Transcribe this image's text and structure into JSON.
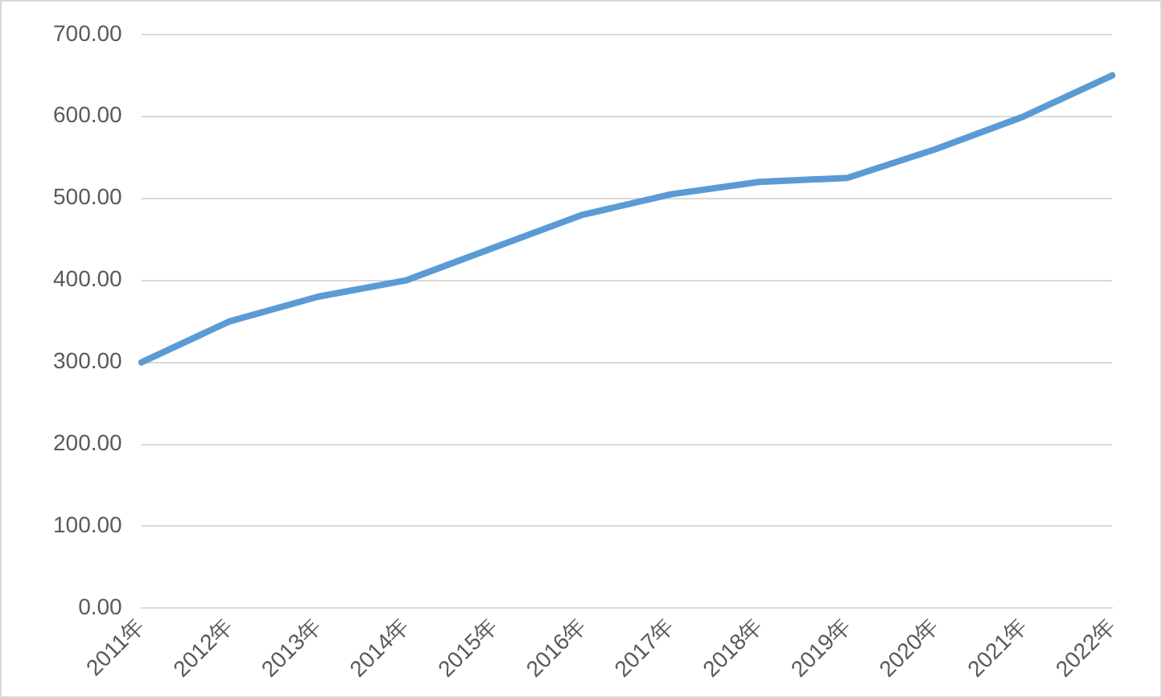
{
  "chart_data": {
    "type": "line",
    "categories": [
      "2011年",
      "2012年",
      "2013年",
      "2014年",
      "2015年",
      "2016年",
      "2017年",
      "2018年",
      "2019年",
      "2020年",
      "2021年",
      "2022年"
    ],
    "series": [
      {
        "color": "#5b9bd5",
        "values": [
          300,
          350,
          380,
          400,
          440,
          480,
          505,
          520,
          525,
          560,
          600,
          650
        ]
      }
    ],
    "ylim": [
      0,
      700
    ],
    "yticks": [
      {
        "value": 0,
        "label": "0.00"
      },
      {
        "value": 100,
        "label": "100.00"
      },
      {
        "value": 200,
        "label": "200.00"
      },
      {
        "value": 300,
        "label": "300.00"
      },
      {
        "value": 400,
        "label": "400.00"
      },
      {
        "value": 500,
        "label": "500.00"
      },
      {
        "value": 600,
        "label": "600.00"
      },
      {
        "value": 700,
        "label": "700.00"
      }
    ],
    "grid": "y",
    "legend": false,
    "marker": "none",
    "line_style": "solid"
  }
}
